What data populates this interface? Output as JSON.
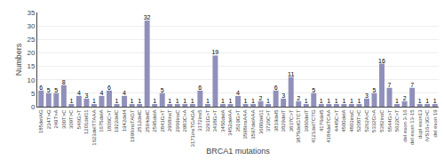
{
  "chart_data": {
    "type": "bar",
    "categories": [
      "185delAG",
      "234T>G",
      "249T>A",
      "300T>C",
      "309T>C",
      "546G>T",
      "1201del11",
      "1623delTTAAA",
      "1675delA",
      "1806C>T",
      "1922delC",
      "1942del4",
      "1996insTAGT",
      "2512delC",
      "2594delC",
      "2595delA",
      "2841G>T",
      "2968insT",
      "2969insC",
      "2983C>A",
      "3171insTGAGA",
      "3172ins5",
      "3291G>T",
      "3438G>T",
      "3450delA",
      "3452delAA",
      "3519G>T",
      "3598insAAA",
      "3597delAAA",
      "3600del11",
      "3726C>T",
      "3819del5",
      "3829delT",
      "3837C>T",
      "3875delGTCT",
      "3960delT",
      "4121delTCTG",
      "4176del5",
      "4184delTCAA",
      "4445C>T",
      "4500delA",
      "4803insC",
      "5208T>C",
      "5262A>C",
      "5332G>A",
      "5382insC",
      "5544G>T",
      "5622C>T",
      "del exon 3-16",
      "del exon 13-15",
      "dupl exon13",
      "IVS16+3G>C",
      "del exon 19"
    ],
    "values": [
      6,
      5,
      5,
      8,
      1,
      4,
      3,
      1,
      4,
      6,
      1,
      4,
      1,
      1,
      32,
      1,
      5,
      1,
      1,
      1,
      1,
      6,
      1,
      19,
      1,
      1,
      4,
      1,
      1,
      2,
      1,
      6,
      3,
      11,
      2,
      1,
      5,
      1,
      1,
      1,
      1,
      1,
      1,
      3,
      5,
      16,
      7,
      1,
      2,
      7,
      1,
      1,
      1
    ],
    "color": "#9090bb",
    "xlabel": "BRCA1 mutations",
    "ylabel": "Numbers",
    "ylim": [
      0,
      35
    ],
    "yticks": [
      0,
      5,
      10,
      15,
      20,
      25,
      30,
      35
    ],
    "grid": true,
    "data_labels": true
  }
}
